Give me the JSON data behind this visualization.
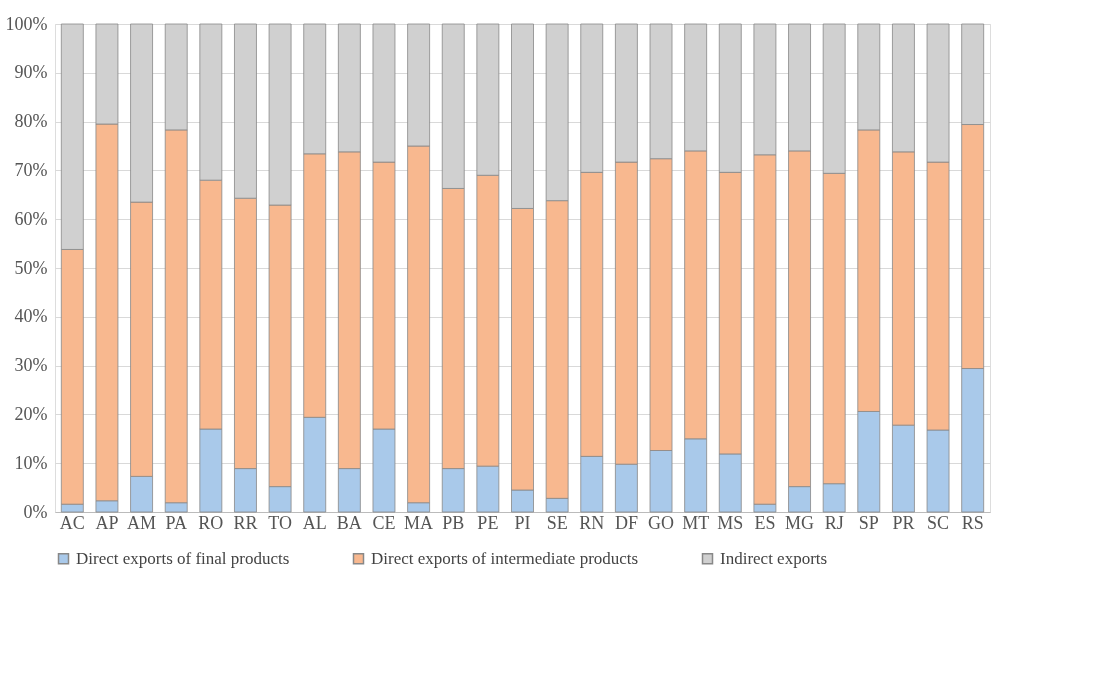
{
  "chart_data": {
    "type": "bar",
    "stacked": true,
    "categories": [
      "AC",
      "AP",
      "AM",
      "PA",
      "RO",
      "RR",
      "TO",
      "AL",
      "BA",
      "CE",
      "MA",
      "PB",
      "PE",
      "PI",
      "SE",
      "RN",
      "DF",
      "GO",
      "MT",
      "MS",
      "ES",
      "MG",
      "RJ",
      "SP",
      "PR",
      "SC",
      "RS"
    ],
    "series": [
      {
        "name": "Direct exports of final products",
        "color": "#a9c9ea",
        "values": [
          1.6,
          2.3,
          7.3,
          1.9,
          17,
          8.9,
          5.2,
          19.4,
          8.9,
          17,
          1.9,
          8.9,
          9.4,
          4.5,
          2.8,
          11.4,
          9.8,
          12.6,
          15,
          11.9,
          1.6,
          5.2,
          5.8,
          20.6,
          17.8,
          16.8,
          29.4
        ]
      },
      {
        "name": "Direct exports of intermediate products",
        "color": "#f8b88f",
        "values": [
          52.2,
          77.2,
          56.2,
          76.4,
          51,
          55.4,
          57.7,
          54,
          64.9,
          54.7,
          73.1,
          57.4,
          59.6,
          57.7,
          61,
          58.2,
          61.9,
          59.8,
          59,
          57.7,
          71.6,
          68.8,
          63.6,
          57.7,
          56,
          54.9,
          50
        ]
      },
      {
        "name": "Indirect exports",
        "color": "#d0d0d0",
        "values": [
          46.2,
          20.5,
          36.5,
          21.7,
          32,
          35.7,
          37.1,
          26.6,
          26.2,
          28.3,
          25,
          33.7,
          31,
          37.8,
          36.2,
          30.4,
          28.3,
          27.6,
          26,
          30.4,
          26.8,
          26,
          30.6,
          21.7,
          26.2,
          28.3,
          20.6
        ]
      }
    ],
    "ylim": [
      0,
      100
    ],
    "yticks": [
      {
        "value": 0,
        "label": "0%"
      },
      {
        "value": 10,
        "label": "10%"
      },
      {
        "value": 20,
        "label": "20%"
      },
      {
        "value": 30,
        "label": "30%"
      },
      {
        "value": 40,
        "label": "40%"
      },
      {
        "value": 50,
        "label": "50%"
      },
      {
        "value": 60,
        "label": "60%"
      },
      {
        "value": 70,
        "label": "70%"
      },
      {
        "value": 80,
        "label": "80%"
      },
      {
        "value": 90,
        "label": "90%"
      },
      {
        "value": 100,
        "label": "100%"
      }
    ],
    "grid": "y",
    "legend": "bottom"
  }
}
